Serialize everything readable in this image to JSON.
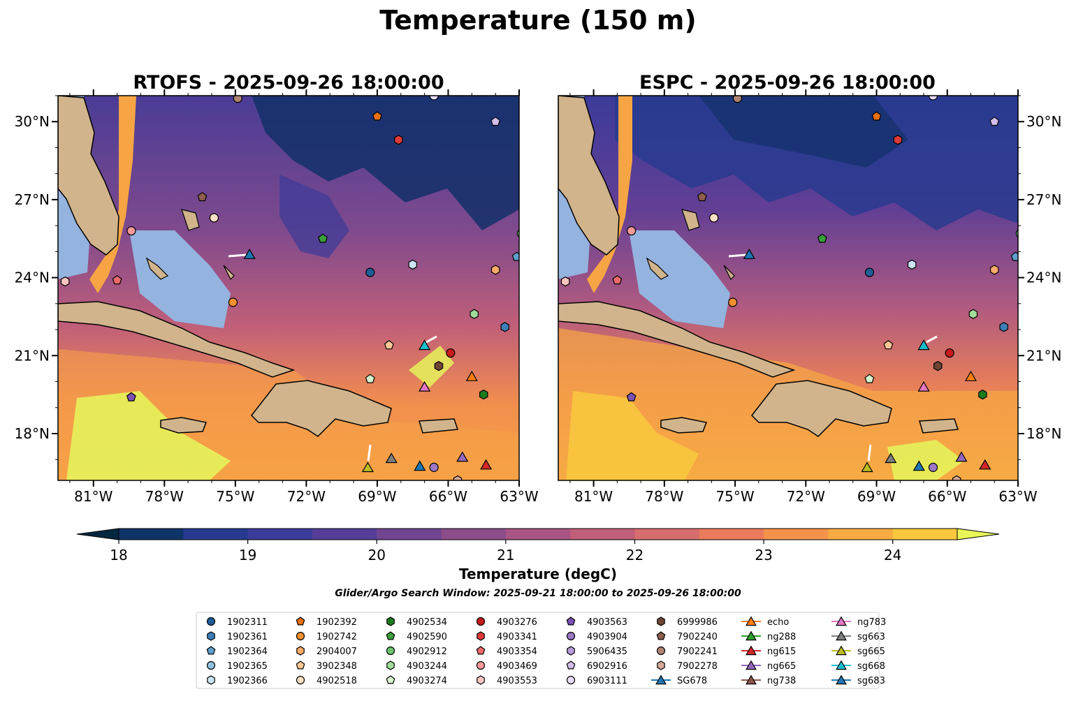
{
  "chart_data": {
    "type": "heatmap",
    "title": "Temperature (150 m)",
    "panels": [
      {
        "id": "rtofs",
        "title": "RTOFS - 2025-09-26 18:00:00"
      },
      {
        "id": "espc",
        "title": "ESPC - 2025-09-26 18:00:00"
      }
    ],
    "lon_range": [
      -82.5,
      -63
    ],
    "lat_range": [
      16.2,
      31
    ],
    "x_ticks": [
      "81°W",
      "78°W",
      "75°W",
      "72°W",
      "69°W",
      "66°W",
      "63°W"
    ],
    "y_ticks": [
      "18°N",
      "21°N",
      "24°N",
      "27°N",
      "30°N"
    ],
    "colorbar": {
      "label": "Temperature (degC)",
      "range": [
        18,
        24.5
      ],
      "ticks": [
        "18",
        "19",
        "20",
        "21",
        "22",
        "23",
        "24"
      ],
      "colors": [
        "#04273f",
        "#0f3468",
        "#263b8f",
        "#3b3b9a",
        "#563e98",
        "#714592",
        "#8c4d8a",
        "#a85583",
        "#c05f7a",
        "#d76d6d",
        "#ea7b5c",
        "#f4924b",
        "#f8ab42",
        "#fac73d",
        "#e9f556"
      ]
    },
    "subtitle": "Glider/Argo Search Window: 2025-09-21 18:00:00 to 2025-09-26 18:00:00",
    "legend": [
      {
        "label": "1902311",
        "marker": "circle",
        "color": "#1f5d99"
      },
      {
        "label": "1902361",
        "marker": "hexagon",
        "color": "#3f7fb8"
      },
      {
        "label": "1902364",
        "marker": "pentagon",
        "color": "#5f9fcf"
      },
      {
        "label": "1902365",
        "marker": "circle",
        "color": "#92c0e0"
      },
      {
        "label": "1902366",
        "marker": "hexagon",
        "color": "#cde3f1"
      },
      {
        "label": "1902392",
        "marker": "pentagon",
        "color": "#e8700f"
      },
      {
        "label": "1902742",
        "marker": "circle",
        "color": "#f39030"
      },
      {
        "label": "2904007",
        "marker": "hexagon",
        "color": "#f8ab6a"
      },
      {
        "label": "3902348",
        "marker": "pentagon",
        "color": "#fbc895"
      },
      {
        "label": "4902518",
        "marker": "circle",
        "color": "#fde0c4"
      },
      {
        "label": "4902534",
        "marker": "hexagon",
        "color": "#1d7a1d"
      },
      {
        "label": "4902590",
        "marker": "pentagon",
        "color": "#3a9e3a"
      },
      {
        "label": "4902912",
        "marker": "circle",
        "color": "#6cc46c"
      },
      {
        "label": "4903244",
        "marker": "hexagon",
        "color": "#a2dc9a"
      },
      {
        "label": "4903274",
        "marker": "pentagon",
        "color": "#d6f2cf"
      },
      {
        "label": "4903276",
        "marker": "circle",
        "color": "#c81b1b"
      },
      {
        "label": "4903341",
        "marker": "hexagon",
        "color": "#de3a3a"
      },
      {
        "label": "4903354",
        "marker": "pentagon",
        "color": "#ee6a6a"
      },
      {
        "label": "4903469",
        "marker": "circle",
        "color": "#f79a9a"
      },
      {
        "label": "4903553",
        "marker": "hexagon",
        "color": "#fbc6c0"
      },
      {
        "label": "4903563",
        "marker": "pentagon",
        "color": "#7b52b3"
      },
      {
        "label": "4903904",
        "marker": "circle",
        "color": "#9b77c6"
      },
      {
        "label": "5906435",
        "marker": "hexagon",
        "color": "#b89ad8"
      },
      {
        "label": "6902916",
        "marker": "pentagon",
        "color": "#d3bdea"
      },
      {
        "label": "6903111",
        "marker": "circle",
        "color": "#e8dcf7"
      },
      {
        "label": "6999986",
        "marker": "hexagon",
        "color": "#6e4535"
      },
      {
        "label": "7902240",
        "marker": "pentagon",
        "color": "#8f5e4c"
      },
      {
        "label": "7902241",
        "marker": "circle",
        "color": "#b08472"
      },
      {
        "label": "7902278",
        "marker": "hexagon",
        "color": "#d6a99a"
      },
      {
        "label": "SG678",
        "marker": "triangle",
        "color": "#1f77b4"
      },
      {
        "label": "echo",
        "marker": "triangle",
        "color": "#ff7f0e"
      },
      {
        "label": "ng288",
        "marker": "triangle",
        "color": "#2ca02c"
      },
      {
        "label": "ng615",
        "marker": "triangle",
        "color": "#d62728"
      },
      {
        "label": "ng665",
        "marker": "triangle",
        "color": "#9467bd"
      },
      {
        "label": "ng738",
        "marker": "triangle",
        "color": "#8c564b"
      },
      {
        "label": "ng783",
        "marker": "triangle",
        "color": "#e377c2"
      },
      {
        "label": "sg663",
        "marker": "triangle",
        "color": "#7f7f7f"
      },
      {
        "label": "sg665",
        "marker": "triangle",
        "color": "#bcbd22"
      },
      {
        "label": "sg668",
        "marker": "triangle",
        "color": "#17becf"
      },
      {
        "label": "sg683",
        "marker": "triangle",
        "color": "#1f77b4"
      }
    ],
    "observations": [
      {
        "label": "1902311",
        "lon": -69.3,
        "lat": 24.2
      },
      {
        "label": "1902361",
        "lon": -63.6,
        "lat": 22.1
      },
      {
        "label": "1902364",
        "lon": -63.1,
        "lat": 24.8
      },
      {
        "label": "1902366",
        "lon": -67.5,
        "lat": 24.5
      },
      {
        "label": "1902392",
        "lon": -69.0,
        "lat": 30.2
      },
      {
        "label": "1902742",
        "lon": -75.1,
        "lat": 23.05
      },
      {
        "label": "2904007",
        "lon": -64.0,
        "lat": 24.3
      },
      {
        "label": "3902348",
        "lon": -68.5,
        "lat": 21.4
      },
      {
        "label": "4902518",
        "lon": -75.9,
        "lat": 26.3
      },
      {
        "label": "4902534",
        "lon": -64.5,
        "lat": 19.5
      },
      {
        "label": "4902590",
        "lon": -71.3,
        "lat": 25.5
      },
      {
        "label": "4902912",
        "lon": -62.9,
        "lat": 25.7
      },
      {
        "label": "4903244",
        "lon": -64.9,
        "lat": 22.6
      },
      {
        "label": "4903274",
        "lon": -69.3,
        "lat": 20.1
      },
      {
        "label": "4903276",
        "lon": -65.9,
        "lat": 21.1
      },
      {
        "label": "4903341",
        "lon": -68.1,
        "lat": 29.3
      },
      {
        "label": "4903354",
        "lon": -80.0,
        "lat": 23.9
      },
      {
        "label": "4903469",
        "lon": -79.4,
        "lat": 25.8
      },
      {
        "label": "4903553",
        "lon": -82.2,
        "lat": 23.85
      },
      {
        "label": "4903563",
        "lon": -79.4,
        "lat": 19.4
      },
      {
        "label": "4903904",
        "lon": -66.6,
        "lat": 16.7
      },
      {
        "label": "6902916",
        "lon": -64.0,
        "lat": 30.0
      },
      {
        "label": "6903111",
        "lon": -66.6,
        "lat": 31.0
      },
      {
        "label": "6999986",
        "lon": -66.4,
        "lat": 20.6
      },
      {
        "label": "7902240",
        "lon": -76.4,
        "lat": 27.1
      },
      {
        "label": "7902241",
        "lon": -74.9,
        "lat": 30.9
      },
      {
        "label": "7902278",
        "lon": -65.6,
        "lat": 16.2
      },
      {
        "label": "SG678",
        "lon": -74.4,
        "lat": 24.9
      },
      {
        "label": "echo",
        "lon": -65.0,
        "lat": 20.2
      },
      {
        "label": "ng615",
        "lon": -64.4,
        "lat": 16.8
      },
      {
        "label": "ng665",
        "lon": -65.4,
        "lat": 17.1
      },
      {
        "label": "ng783",
        "lon": -67.0,
        "lat": 19.8
      },
      {
        "label": "sg663",
        "lon": -68.4,
        "lat": 17.05
      },
      {
        "label": "sg665",
        "lon": -69.4,
        "lat": 16.7
      },
      {
        "label": "sg668",
        "lon": -67.0,
        "lat": 21.4
      },
      {
        "label": "sg683",
        "lon": -67.2,
        "lat": 16.75
      }
    ]
  }
}
